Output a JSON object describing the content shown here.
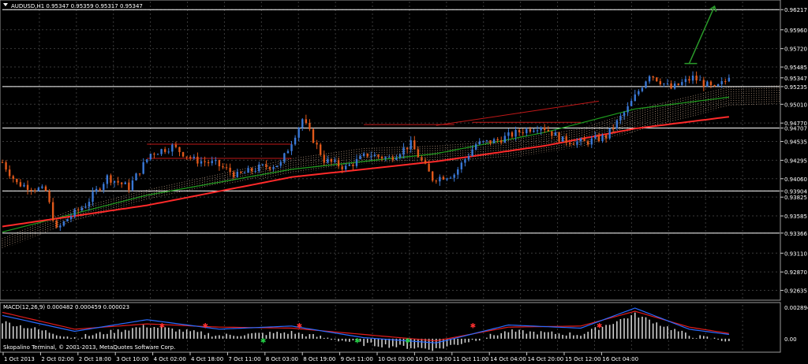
{
  "window": {
    "symbol": "AUDUSD,H1",
    "ohlc": "0.95347 0.95359 0.95317 0.95347",
    "title": "AUDUSD,H1  0.95347 0.95359 0.95317 0.95347"
  },
  "macd": {
    "label": "MACD(12,26,9) 0.000482 0.000459 0.000023",
    "ticks": [
      "0.002894",
      "0.00"
    ]
  },
  "copyright": "Skopalino Terminal, © 2001-2013, MetaQuotes Software Corp.",
  "price_axis": {
    "ticks": [
      "0.96217",
      "0.95960",
      "0.95720",
      "0.95485",
      "0.95347",
      "0.95235",
      "0.95010",
      "0.94770",
      "0.94707",
      "0.94535",
      "0.94295",
      "0.94060",
      "0.93904",
      "0.93825",
      "0.93585",
      "0.93366",
      "0.93110",
      "0.92870",
      "0.92635"
    ]
  },
  "time_axis": {
    "ticks": [
      "1 Oct 2013",
      "2 Oct 02:00",
      "2 Oct 18:00",
      "3 Oct 10:00",
      "4 Oct 02:00",
      "4 Oct 18:00",
      "7 Oct 11:00",
      "8 Oct 03:00",
      "8 Oct 19:00",
      "9 Oct 11:00",
      "10 Oct 03:00",
      "10 Oct 19:00",
      "11 Oct 11:00",
      "14 Oct 04:00",
      "14 Oct 20:00",
      "15 Oct 12:00",
      "16 Oct 04:00"
    ]
  },
  "colors": {
    "background": "#000000",
    "grid": "#3a3a3a",
    "bull": "#3a78d6",
    "bear": "#e0581a",
    "sma_red": "#ff2a2a",
    "sma_green": "#1e9e1e",
    "kumo": "#d9b79a",
    "hlines": "#ffffff",
    "arrow": "#2a9a2a"
  },
  "chart_data": {
    "type": "candlestick",
    "title": "AUDUSD,H1",
    "timeframe": "H1",
    "period": "1 Oct 2013 – 16 Oct 2013",
    "last": 0.95347,
    "ylim": [
      0.9252,
      0.9632
    ],
    "grid": true,
    "price_levels": [
      0.96217,
      0.95235,
      0.94707,
      0.93904,
      0.93366
    ],
    "price_path": [
      {
        "t": 0,
        "p": 0.9427
      },
      {
        "t": 4,
        "p": 0.94
      },
      {
        "t": 8,
        "p": 0.9395
      },
      {
        "t": 12,
        "p": 0.939
      },
      {
        "t": 15,
        "p": 0.934
      },
      {
        "t": 18,
        "p": 0.9355
      },
      {
        "t": 23,
        "p": 0.9373
      },
      {
        "t": 29,
        "p": 0.9408
      },
      {
        "t": 35,
        "p": 0.9395
      },
      {
        "t": 41,
        "p": 0.9438
      },
      {
        "t": 47,
        "p": 0.9447
      },
      {
        "t": 53,
        "p": 0.943
      },
      {
        "t": 59,
        "p": 0.9425
      },
      {
        "t": 65,
        "p": 0.941
      },
      {
        "t": 71,
        "p": 0.942
      },
      {
        "t": 77,
        "p": 0.9425
      },
      {
        "t": 83,
        "p": 0.9482
      },
      {
        "t": 89,
        "p": 0.943
      },
      {
        "t": 95,
        "p": 0.942
      },
      {
        "t": 101,
        "p": 0.9437
      },
      {
        "t": 107,
        "p": 0.9432
      },
      {
        "t": 113,
        "p": 0.945
      },
      {
        "t": 119,
        "p": 0.9406
      },
      {
        "t": 125,
        "p": 0.9412
      },
      {
        "t": 131,
        "p": 0.945
      },
      {
        "t": 137,
        "p": 0.9455
      },
      {
        "t": 143,
        "p": 0.9466
      },
      {
        "t": 149,
        "p": 0.9474
      },
      {
        "t": 155,
        "p": 0.9455
      },
      {
        "t": 161,
        "p": 0.9452
      },
      {
        "t": 167,
        "p": 0.946
      },
      {
        "t": 173,
        "p": 0.9496
      },
      {
        "t": 179,
        "p": 0.954
      },
      {
        "t": 185,
        "p": 0.9521
      },
      {
        "t": 191,
        "p": 0.9535
      },
      {
        "t": 197,
        "p": 0.952
      },
      {
        "t": 201,
        "p": 0.9534
      }
    ],
    "sma_red": [
      {
        "t": 0,
        "p": 0.9345
      },
      {
        "t": 40,
        "p": 0.9372
      },
      {
        "t": 80,
        "p": 0.9408
      },
      {
        "t": 120,
        "p": 0.9428
      },
      {
        "t": 150,
        "p": 0.9448
      },
      {
        "t": 175,
        "p": 0.947
      },
      {
        "t": 201,
        "p": 0.9485
      }
    ],
    "sma_green": [
      {
        "t": 0,
        "p": 0.9338
      },
      {
        "t": 40,
        "p": 0.9385
      },
      {
        "t": 80,
        "p": 0.9418
      },
      {
        "t": 120,
        "p": 0.9438
      },
      {
        "t": 150,
        "p": 0.9465
      },
      {
        "t": 175,
        "p": 0.9495
      },
      {
        "t": 201,
        "p": 0.951
      }
    ],
    "kumo": [
      {
        "t": 0,
        "a": 0.933,
        "b": 0.9316
      },
      {
        "t": 20,
        "a": 0.9368,
        "b": 0.9352
      },
      {
        "t": 40,
        "a": 0.9392,
        "b": 0.9378
      },
      {
        "t": 60,
        "a": 0.9412,
        "b": 0.9398
      },
      {
        "t": 80,
        "a": 0.9432,
        "b": 0.9412
      },
      {
        "t": 100,
        "a": 0.9445,
        "b": 0.9425
      },
      {
        "t": 120,
        "a": 0.9448,
        "b": 0.9428
      },
      {
        "t": 140,
        "a": 0.9455,
        "b": 0.9432
      },
      {
        "t": 160,
        "a": 0.947,
        "b": 0.9447
      },
      {
        "t": 180,
        "a": 0.95,
        "b": 0.9472
      },
      {
        "t": 201,
        "a": 0.9523,
        "b": 0.9498
      },
      {
        "t": 215,
        "a": 0.9525,
        "b": 0.9502
      }
    ],
    "arrow": {
      "from": {
        "t": 190,
        "p": 0.9553
      },
      "to": {
        "t": 197,
        "p": 0.9626
      }
    },
    "channels": [
      {
        "from": {
          "t": 40,
          "p": 0.945
        },
        "to": {
          "t": 80,
          "p": 0.945
        }
      },
      {
        "from": {
          "t": 40,
          "p": 0.9432
        },
        "to": {
          "t": 80,
          "p": 0.9432
        }
      },
      {
        "from": {
          "t": 100,
          "p": 0.9475
        },
        "to": {
          "t": 125,
          "p": 0.9475
        }
      },
      {
        "from": {
          "t": 130,
          "p": 0.9478
        },
        "to": {
          "t": 160,
          "p": 0.9478
        }
      },
      {
        "from": {
          "t": 120,
          "p": 0.9474
        },
        "to": {
          "t": 165,
          "p": 0.9505
        }
      }
    ],
    "macd": {
      "ylim": [
        -0.0012,
        0.0032
      ],
      "histogram_seed": 2.3e-05,
      "signal_line": [
        {
          "t": 0,
          "v": 0.0025
        },
        {
          "t": 20,
          "v": 0.0009
        },
        {
          "t": 40,
          "v": 0.0014
        },
        {
          "t": 60,
          "v": 0.0011
        },
        {
          "t": 80,
          "v": 0.001
        },
        {
          "t": 100,
          "v": 0.0004
        },
        {
          "t": 120,
          "v": -0.0002
        },
        {
          "t": 140,
          "v": 0.0011
        },
        {
          "t": 160,
          "v": 0.0012
        },
        {
          "t": 175,
          "v": 0.0026
        },
        {
          "t": 190,
          "v": 0.0011
        },
        {
          "t": 201,
          "v": 0.0005
        }
      ],
      "macd_line": [
        {
          "t": 0,
          "v": 0.0022
        },
        {
          "t": 20,
          "v": 0.0007
        },
        {
          "t": 40,
          "v": 0.0018
        },
        {
          "t": 60,
          "v": 0.0009
        },
        {
          "t": 80,
          "v": 0.0012
        },
        {
          "t": 100,
          "v": 0.0001
        },
        {
          "t": 120,
          "v": -0.0004
        },
        {
          "t": 140,
          "v": 0.0013
        },
        {
          "t": 160,
          "v": 0.001
        },
        {
          "t": 175,
          "v": 0.0029
        },
        {
          "t": 190,
          "v": 0.0009
        },
        {
          "t": 201,
          "v": 0.0004
        }
      ]
    }
  }
}
